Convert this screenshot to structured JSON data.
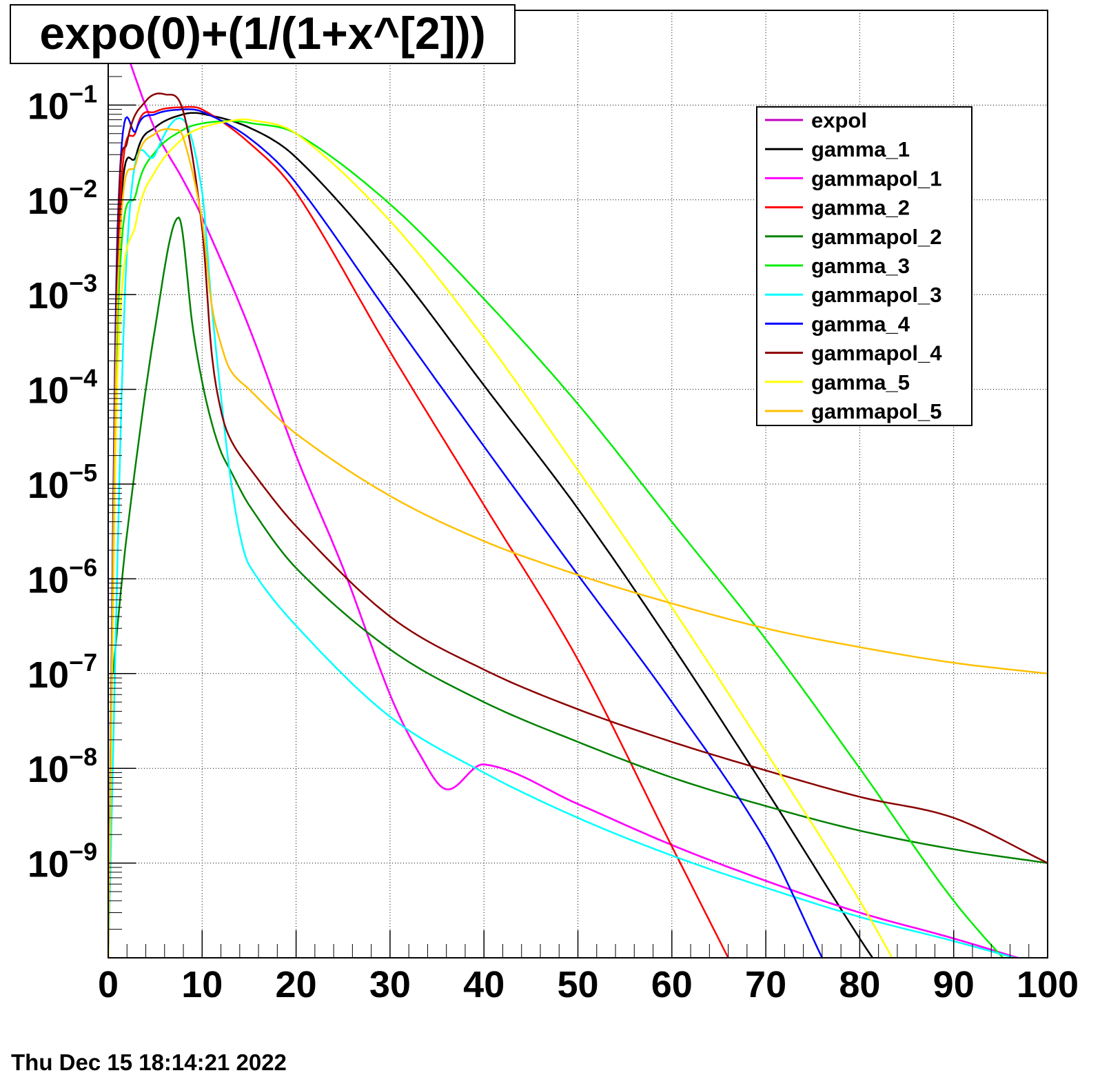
{
  "timestamp": "Thu Dec 15 18:14:21 2022",
  "chart_data": {
    "type": "line",
    "title": "expo(0)+(1/(1+x^[2]))",
    "xlabel": "",
    "ylabel": "",
    "xlim": [
      0,
      100
    ],
    "ylim": [
      1e-10,
      1
    ],
    "y_scale": "log",
    "grid": true,
    "legend_position": "top-right",
    "x_ticks": [
      "0",
      "10",
      "20",
      "30",
      "40",
      "50",
      "60",
      "70",
      "80",
      "90",
      "100"
    ],
    "y_ticks": [
      {
        "base": "10",
        "exp": "−1"
      },
      {
        "base": "10",
        "exp": "−2"
      },
      {
        "base": "10",
        "exp": "−3"
      },
      {
        "base": "10",
        "exp": "−4"
      },
      {
        "base": "10",
        "exp": "−5"
      },
      {
        "base": "10",
        "exp": "−6"
      },
      {
        "base": "10",
        "exp": "−7"
      },
      {
        "base": "10",
        "exp": "−8"
      },
      {
        "base": "10",
        "exp": "−9"
      }
    ],
    "series": [
      {
        "name": "expol",
        "color": "#c000c0",
        "x": [
          0,
          2,
          5,
          8,
          10,
          15,
          20,
          25,
          30,
          33,
          36,
          40,
          50,
          60,
          70,
          80,
          90,
          100
        ],
        "y": [
          1.4,
          0.35,
          0.055,
          0.016,
          0.0065,
          0.00045,
          2e-05,
          1.3e-06,
          6e-08,
          1.5e-08,
          6e-09,
          1.1e-08,
          4.2e-09,
          1.55e-09,
          6.5e-10,
          3e-10,
          1.6e-10,
          8e-11
        ]
      },
      {
        "name": "gamma_1",
        "color": "#000000",
        "x": [
          0,
          1,
          3,
          5,
          8,
          10,
          15,
          20,
          30,
          40,
          50,
          60,
          70,
          80,
          85
        ],
        "y": [
          1e-10,
          0.0015,
          0.03,
          0.058,
          0.08,
          0.081,
          0.058,
          0.028,
          0.0022,
          0.00011,
          5.5e-06,
          2e-07,
          6e-09,
          1.6e-10,
          3e-11
        ]
      },
      {
        "name": "gammapol_1",
        "color": "#ff00ff",
        "x": [
          0,
          2,
          5,
          8,
          10,
          15,
          20,
          25,
          30,
          33,
          36,
          40,
          50,
          60,
          70,
          80,
          90,
          100
        ],
        "y": [
          1.4,
          0.35,
          0.055,
          0.016,
          0.0065,
          0.00045,
          2e-05,
          1.3e-06,
          6e-08,
          1.5e-08,
          6e-09,
          1.1e-08,
          4.2e-09,
          1.55e-09,
          6.5e-10,
          3e-10,
          1.6e-10,
          8e-11
        ]
      },
      {
        "name": "gamma_2",
        "color": "#ff0000",
        "x": [
          0,
          1,
          3,
          5,
          8,
          10,
          15,
          20,
          30,
          40,
          50,
          60,
          66
        ],
        "y": [
          1e-10,
          0.002,
          0.055,
          0.085,
          0.095,
          0.09,
          0.04,
          0.012,
          0.00025,
          6e-06,
          1.4e-07,
          1.5e-09,
          1e-10
        ]
      },
      {
        "name": "gammapol_2",
        "color": "#008000",
        "x": [
          0.5,
          2,
          5,
          7.5,
          9,
          10,
          11,
          12,
          13,
          15,
          20,
          30,
          40,
          50,
          60,
          70,
          80,
          90,
          100
        ],
        "y": [
          1e-07,
          3e-06,
          0.00045,
          0.0065,
          0.00045,
          0.00012,
          4.5e-05,
          2.2e-05,
          1.4e-05,
          6e-06,
          1.3e-06,
          1.8e-07,
          5e-08,
          1.9e-08,
          8e-09,
          4e-09,
          2.2e-09,
          1.4e-09,
          1e-09
        ]
      },
      {
        "name": "gamma_3",
        "color": "#00ee00",
        "x": [
          0,
          1,
          3,
          5,
          8,
          10,
          13,
          15,
          20,
          30,
          40,
          50,
          60,
          70,
          80,
          90,
          98
        ],
        "y": [
          1e-10,
          0.0005,
          0.012,
          0.032,
          0.055,
          0.064,
          0.068,
          0.065,
          0.05,
          0.009,
          0.0009,
          7e-05,
          4e-06,
          2.3e-07,
          1e-08,
          4e-10,
          5e-11
        ]
      },
      {
        "name": "gammapol_3",
        "color": "#00ffff",
        "x": [
          0,
          2,
          5,
          8,
          10,
          11,
          12,
          13,
          14,
          15,
          20,
          30,
          40,
          50,
          60,
          70,
          80,
          90,
          100
        ],
        "y": [
          1e-10,
          0.003,
          0.03,
          0.07,
          0.012,
          0.0008,
          8.5e-05,
          1.2e-05,
          3e-06,
          1.4e-06,
          3.2e-07,
          3.5e-08,
          9e-09,
          3e-09,
          1.2e-09,
          5.5e-10,
          2.7e-10,
          1.5e-10,
          8e-11
        ]
      },
      {
        "name": "gamma_4",
        "color": "#0000ff",
        "x": [
          0,
          1,
          3,
          5,
          8,
          10,
          15,
          20,
          30,
          40,
          50,
          60,
          70,
          76
        ],
        "y": [
          1e-10,
          0.005,
          0.055,
          0.08,
          0.09,
          0.085,
          0.045,
          0.015,
          0.0006,
          2.5e-05,
          1.1e-06,
          5e-08,
          1.7e-09,
          1e-10
        ]
      },
      {
        "name": "gammapol_4",
        "color": "#8b0000",
        "x": [
          0,
          1,
          2,
          4,
          6,
          8,
          10,
          11,
          12,
          13,
          15,
          20,
          30,
          40,
          50,
          60,
          70,
          80,
          90,
          100
        ],
        "y": [
          1e-10,
          0.003,
          0.04,
          0.11,
          0.13,
          0.085,
          0.005,
          0.00025,
          6e-05,
          3e-05,
          1.5e-05,
          3.6e-06,
          4e-07,
          1.1e-07,
          4.2e-08,
          1.9e-08,
          9.5e-09,
          5e-09,
          3e-09,
          1e-09
        ]
      },
      {
        "name": "gamma_5",
        "color": "#ffff00",
        "x": [
          0,
          1,
          3,
          5,
          8,
          10,
          13,
          15,
          20,
          30,
          40,
          50,
          60,
          70,
          80,
          88
        ],
        "y": [
          1e-10,
          0.00015,
          0.006,
          0.02,
          0.045,
          0.058,
          0.068,
          0.07,
          0.05,
          0.006,
          0.00035,
          1.4e-05,
          5e-07,
          1.5e-08,
          4e-10,
          1.5e-11
        ]
      },
      {
        "name": "gammapol_5",
        "color": "#ffc000",
        "x": [
          0,
          1,
          3,
          5,
          7,
          8,
          10,
          11,
          12,
          13,
          15,
          20,
          30,
          40,
          50,
          60,
          70,
          80,
          90,
          100
        ],
        "y": [
          1e-10,
          0.001,
          0.025,
          0.05,
          0.055,
          0.045,
          0.006,
          0.0008,
          0.0003,
          0.00016,
          0.0001,
          3.4e-05,
          7.5e-06,
          2.5e-06,
          1.1e-06,
          5.5e-07,
          3e-07,
          1.9e-07,
          1.3e-07,
          1e-07
        ]
      }
    ]
  }
}
